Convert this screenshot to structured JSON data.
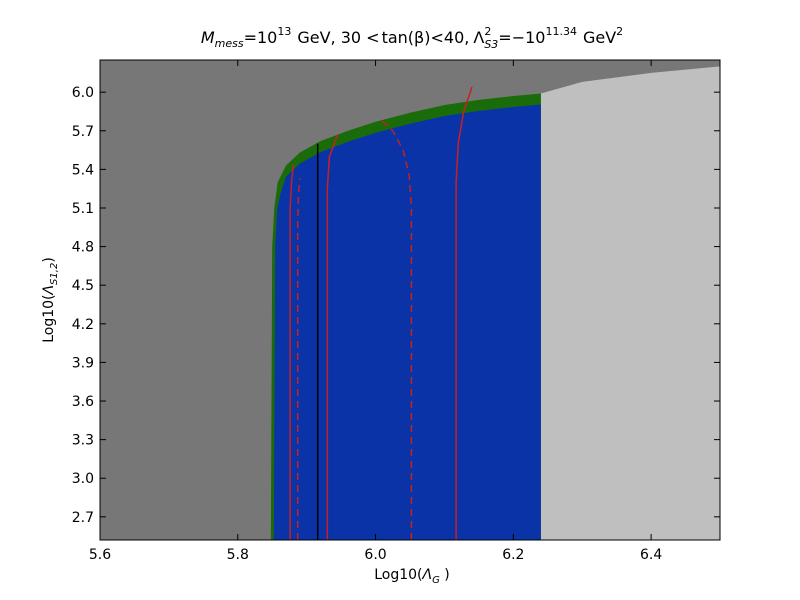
{
  "chart_data": {
    "type": "area",
    "title": "M_mess = 10^13 GeV, 30 < tan(β) < 40, Λ²_S3 = −10^11.34 GeV²",
    "title_parts": {
      "mmess": "M",
      "mmess_sub": "mess",
      "eq1": "=10",
      "exp1": "13",
      "unit1": "GeV, 30 <",
      "tanb": "tan(β)",
      "lt40": "<40,",
      "lam": "Λ",
      "lam_sup": "2",
      "lam_sub": "S3",
      "eq2": "=−10",
      "exp2": "11.34",
      "unit2": "GeV",
      "unit2_sup": "2"
    },
    "xlabel": "Log10(Λ_G )",
    "xlabel_parts": {
      "prefix": "Log10(",
      "sym": "Λ",
      "sub": "G",
      "suffix": " )"
    },
    "ylabel": "Log10(Λ_S1,2)",
    "ylabel_parts": {
      "prefix": "Log10(",
      "sym": "Λ",
      "sub": "S1,2",
      "suffix": ")"
    },
    "xlim": [
      5.6,
      6.5
    ],
    "ylim": [
      2.52,
      6.25
    ],
    "xticks": [
      "5.6",
      "5.8",
      "6.0",
      "6.2",
      "6.4"
    ],
    "yticks": [
      "2.7",
      "3.0",
      "3.3",
      "3.6",
      "3.9",
      "4.2",
      "4.5",
      "4.8",
      "5.1",
      "5.4",
      "5.7",
      "6.0"
    ],
    "grid": false,
    "regions": {
      "dark_gray": "#777777",
      "light_gray": "#bfbfbf",
      "green": "#1a6b0a",
      "blue": "#0b33a8",
      "red": "#c82020",
      "black": "#000000"
    },
    "boundaries": {
      "lower_edge_x": 5.848,
      "right_edge_x": 6.24,
      "upper_boundary": [
        [
          5.848,
          2.52
        ],
        [
          5.85,
          4.8
        ],
        [
          5.853,
          5.1
        ],
        [
          5.858,
          5.3
        ],
        [
          5.87,
          5.43
        ],
        [
          5.89,
          5.53
        ],
        [
          5.92,
          5.62
        ],
        [
          5.96,
          5.7
        ],
        [
          6.0,
          5.77
        ],
        [
          6.05,
          5.84
        ],
        [
          6.1,
          5.9
        ],
        [
          6.15,
          5.94
        ],
        [
          6.2,
          5.97
        ],
        [
          6.24,
          5.99
        ],
        [
          6.3,
          6.08
        ],
        [
          6.4,
          6.15
        ],
        [
          6.5,
          6.2
        ]
      ]
    },
    "lines": [
      {
        "style": "solid",
        "color": "red",
        "points": [
          [
            5.876,
            2.52
          ],
          [
            5.876,
            5.1
          ],
          [
            5.878,
            5.3
          ],
          [
            5.881,
            5.44
          ]
        ]
      },
      {
        "style": "dashed",
        "color": "red",
        "points": [
          [
            5.887,
            2.52
          ],
          [
            5.887,
            5.0
          ],
          [
            5.888,
            5.2
          ],
          [
            5.89,
            5.33
          ]
        ]
      },
      {
        "style": "solid",
        "color": "black",
        "points": [
          [
            5.916,
            2.52
          ],
          [
            5.916,
            5.6
          ]
        ]
      },
      {
        "style": "solid",
        "color": "red",
        "points": [
          [
            5.93,
            2.52
          ],
          [
            5.93,
            5.25
          ],
          [
            5.933,
            5.5
          ],
          [
            5.945,
            5.67
          ]
        ]
      },
      {
        "style": "dashed",
        "color": "red",
        "points": [
          [
            6.052,
            2.52
          ],
          [
            6.052,
            5.1
          ],
          [
            6.049,
            5.35
          ],
          [
            6.04,
            5.55
          ],
          [
            6.025,
            5.7
          ],
          [
            6.005,
            5.8
          ]
        ]
      },
      {
        "style": "solid",
        "color": "red",
        "points": [
          [
            6.117,
            2.52
          ],
          [
            6.117,
            5.3
          ],
          [
            6.12,
            5.6
          ],
          [
            6.128,
            5.85
          ],
          [
            6.14,
            6.04
          ]
        ]
      }
    ]
  }
}
